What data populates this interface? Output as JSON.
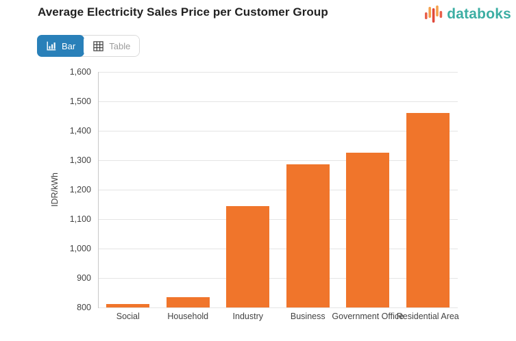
{
  "header": {
    "title": "Average Electricity Sales Price per Customer Group",
    "logo_text": "databoks",
    "logo_color": "#3CAEA3"
  },
  "toolbar": {
    "bar_label": "Bar",
    "table_label": "Table",
    "active_color": "#2980B9",
    "inactive_text_color": "#9B9B9B"
  },
  "chart_data": {
    "type": "bar",
    "title": "Average Electricity Sales Price per Customer Group",
    "categories": [
      "Social",
      "Household",
      "Industry",
      "Business",
      "Government Office",
      "Residential Area"
    ],
    "values": [
      812,
      836,
      1144,
      1285,
      1325,
      1460
    ],
    "xlabel": "",
    "ylabel": "IDR/kWh",
    "ylim": [
      800,
      1600
    ],
    "ytick_step": 100,
    "ytick_labels": [
      "800",
      "900",
      "1,000",
      "1,100",
      "1,200",
      "1,300",
      "1,400",
      "1,500",
      "1,600"
    ],
    "bar_color": "#F0752B",
    "grid": true,
    "legend_position": "none"
  }
}
